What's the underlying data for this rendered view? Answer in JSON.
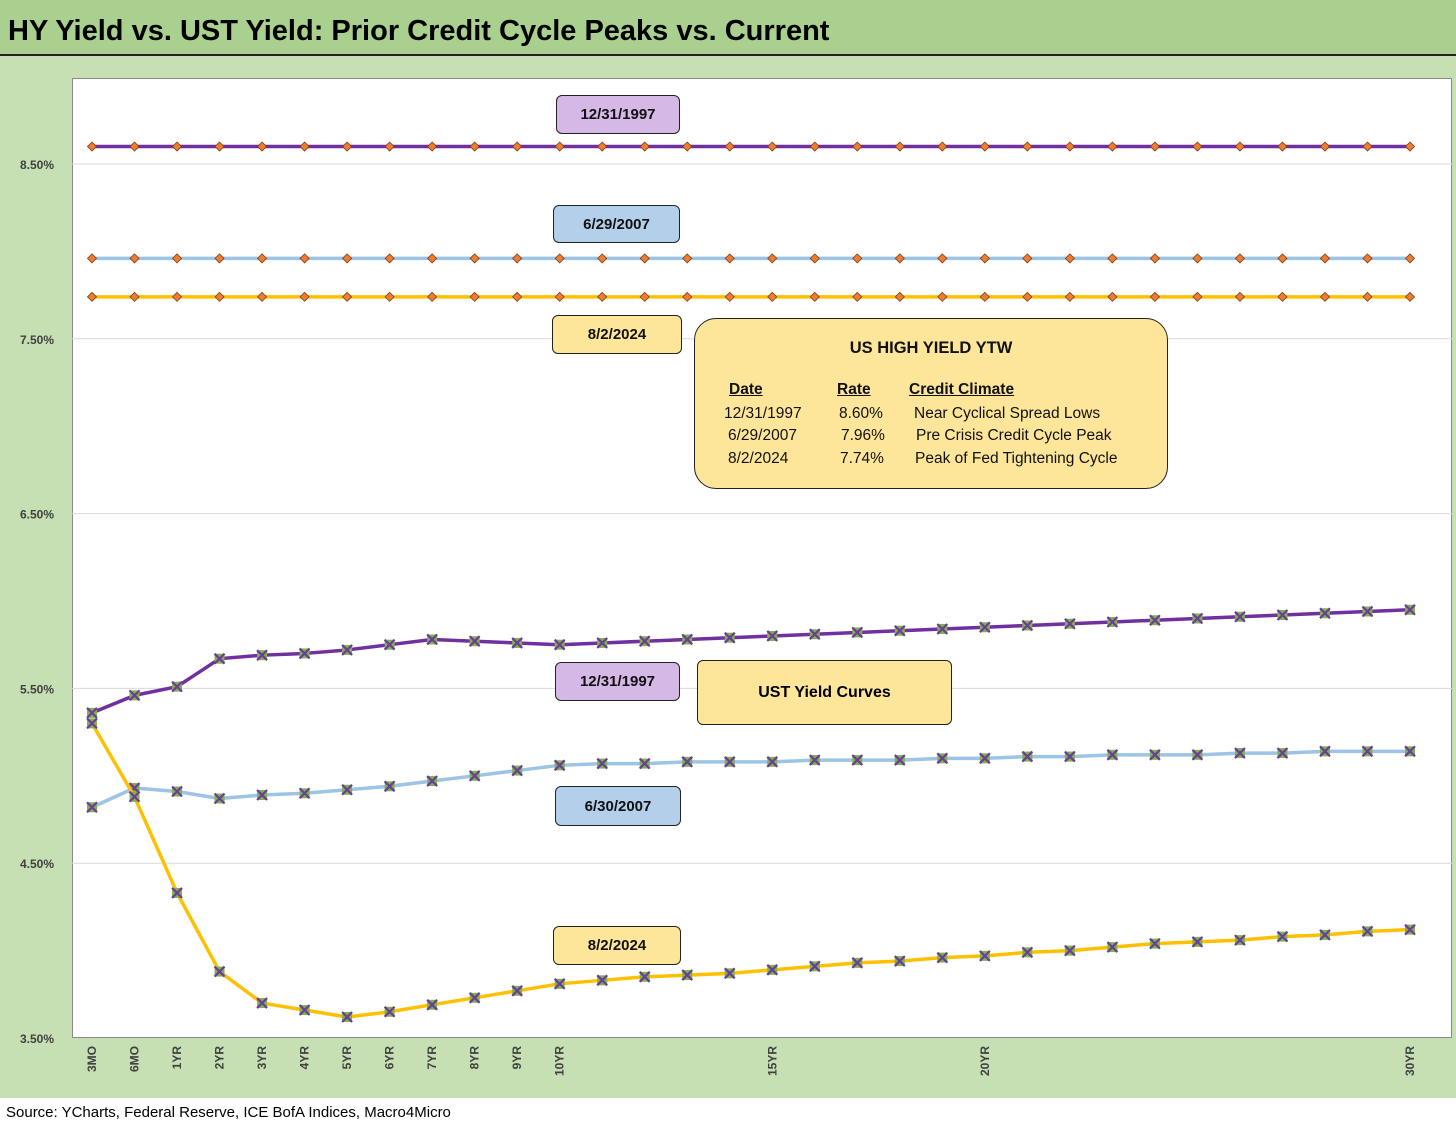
{
  "title": "HY Yield vs. UST Yield: Prior Credit Cycle Peaks vs. Current",
  "source": "Source: YCharts, Federal Reserve, ICE BofA Indices, Macro4Micro",
  "colors": {
    "purple": "#7030a0",
    "blue": "#9dc3e6",
    "yellow": "#ffc000",
    "hy_marker": "#ed7d31",
    "ust_marker_fill": "#7fb34a",
    "ust_marker_cross": "#6a3d9a",
    "background_green": "#c6e0b4",
    "title_green": "#a9d08e"
  },
  "labels": {
    "hy_1997": "12/31/1997",
    "hy_2007": "6/29/2007",
    "hy_2024": "8/2/2024",
    "ust_1997": "12/31/1997",
    "ust_2007": "6/30/2007",
    "ust_2024": "8/2/2024",
    "ust_box": "UST Yield Curves"
  },
  "info_box": {
    "title": "US HIGH YIELD YTW",
    "headers": [
      "Date",
      "Rate",
      "Credit Climate"
    ],
    "rows": [
      [
        "12/31/1997",
        "8.60%",
        "Near Cyclical Spread Lows"
      ],
      [
        "6/29/2007",
        "7.96%",
        "Pre Crisis Credit Cycle Peak"
      ],
      [
        "8/2/2024",
        "7.74%",
        "Peak of Fed Tightening Cycle"
      ]
    ]
  },
  "chart_data": {
    "type": "line",
    "ylim": [
      3.5,
      9.0
    ],
    "y_ticks": [
      "3.50%",
      "4.50%",
      "5.50%",
      "6.50%",
      "7.50%",
      "8.50%"
    ],
    "y_tick_values": [
      3.5,
      4.5,
      5.5,
      6.5,
      7.5,
      8.5
    ],
    "x_tick_labels": [
      "3MO",
      "6MO",
      "1YR",
      "2YR",
      "3YR",
      "4YR",
      "5YR",
      "6YR",
      "7YR",
      "8YR",
      "9YR",
      "10YR",
      "",
      "",
      "",
      "",
      "15YR",
      "",
      "",
      "",
      "",
      "20YR",
      "",
      "",
      "",
      "",
      "",
      "",
      "",
      "",
      "",
      "30YR"
    ],
    "grid": true,
    "legend": "none",
    "series": [
      {
        "key": "hy_1997",
        "kind": "hy",
        "color": "purple",
        "values": [
          8.6,
          8.6,
          8.6,
          8.6,
          8.6,
          8.6,
          8.6,
          8.6,
          8.6,
          8.6,
          8.6,
          8.6,
          8.6,
          8.6,
          8.6,
          8.6,
          8.6,
          8.6,
          8.6,
          8.6,
          8.6,
          8.6,
          8.6,
          8.6,
          8.6,
          8.6,
          8.6,
          8.6,
          8.6,
          8.6,
          8.6,
          8.6
        ]
      },
      {
        "key": "hy_2007",
        "kind": "hy",
        "color": "blue",
        "values": [
          7.96,
          7.96,
          7.96,
          7.96,
          7.96,
          7.96,
          7.96,
          7.96,
          7.96,
          7.96,
          7.96,
          7.96,
          7.96,
          7.96,
          7.96,
          7.96,
          7.96,
          7.96,
          7.96,
          7.96,
          7.96,
          7.96,
          7.96,
          7.96,
          7.96,
          7.96,
          7.96,
          7.96,
          7.96,
          7.96,
          7.96,
          7.96
        ]
      },
      {
        "key": "hy_2024",
        "kind": "hy",
        "color": "yellow",
        "values": [
          7.74,
          7.74,
          7.74,
          7.74,
          7.74,
          7.74,
          7.74,
          7.74,
          7.74,
          7.74,
          7.74,
          7.74,
          7.74,
          7.74,
          7.74,
          7.74,
          7.74,
          7.74,
          7.74,
          7.74,
          7.74,
          7.74,
          7.74,
          7.74,
          7.74,
          7.74,
          7.74,
          7.74,
          7.74,
          7.74,
          7.74,
          7.74
        ]
      },
      {
        "key": "ust_1997",
        "kind": "ust",
        "color": "purple",
        "values": [
          5.36,
          5.46,
          5.51,
          5.67,
          5.69,
          5.7,
          5.72,
          5.75,
          5.78,
          5.77,
          5.76,
          5.75,
          5.76,
          5.77,
          5.78,
          5.79,
          5.8,
          5.81,
          5.82,
          5.83,
          5.84,
          5.85,
          5.86,
          5.87,
          5.88,
          5.89,
          5.9,
          5.91,
          5.92,
          5.93,
          5.94,
          5.95
        ]
      },
      {
        "key": "ust_2007",
        "kind": "ust",
        "color": "blue",
        "values": [
          4.82,
          4.93,
          4.91,
          4.87,
          4.89,
          4.9,
          4.92,
          4.94,
          4.97,
          5.0,
          5.03,
          5.06,
          5.07,
          5.07,
          5.08,
          5.08,
          5.08,
          5.09,
          5.09,
          5.09,
          5.1,
          5.1,
          5.11,
          5.11,
          5.12,
          5.12,
          5.12,
          5.13,
          5.13,
          5.14,
          5.14,
          5.14
        ]
      },
      {
        "key": "ust_2024",
        "kind": "ust",
        "color": "yellow",
        "values": [
          5.3,
          4.88,
          4.33,
          3.88,
          3.7,
          3.66,
          3.62,
          3.65,
          3.69,
          3.73,
          3.77,
          3.81,
          3.83,
          3.85,
          3.86,
          3.87,
          3.89,
          3.91,
          3.93,
          3.94,
          3.96,
          3.97,
          3.99,
          4.0,
          4.02,
          4.04,
          4.05,
          4.06,
          4.08,
          4.09,
          4.11,
          4.12
        ]
      }
    ]
  }
}
